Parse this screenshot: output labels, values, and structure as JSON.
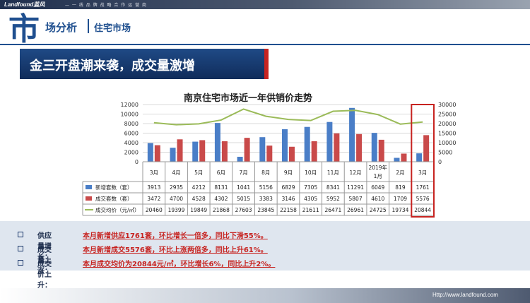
{
  "header": {
    "logo": "Landfound蓝风",
    "slogan": "— 一 线 品 牌 战 略 合 作 运 营 商",
    "big_char": "市",
    "section_title": "场分析",
    "section_sub": "住宅市场"
  },
  "banner": {
    "title": "金三开盘潮来袭，成交量激增"
  },
  "chart_data": {
    "type": "bar",
    "title": "南京住宅市场近一年供销价走势",
    "categories": [
      "3月",
      "4月",
      "5月",
      "6月",
      "7月",
      "8月",
      "9月",
      "10月",
      "11月",
      "12月",
      "2019年1月",
      "2月",
      "3月"
    ],
    "series": [
      {
        "name": "新增套数（套）",
        "type": "bar",
        "axis": "left",
        "color": "#4a7ec7",
        "values": [
          3913,
          2935,
          4212,
          8131,
          1041,
          5156,
          6829,
          7305,
          8341,
          11291,
          6049,
          819,
          1761
        ]
      },
      {
        "name": "成交套数（套）",
        "type": "bar",
        "axis": "left",
        "color": "#c94a4a",
        "values": [
          3472,
          4700,
          4528,
          4302,
          5015,
          3383,
          3146,
          4305,
          5952,
          5807,
          4610,
          1709,
          5576
        ]
      },
      {
        "name": "成交均价（元/㎡）",
        "type": "line",
        "axis": "right",
        "color": "#9bbb59",
        "values": [
          20460,
          19399,
          19849,
          21868,
          27603,
          23845,
          22158,
          21611,
          26471,
          26961,
          24725,
          19734,
          20844
        ]
      }
    ],
    "y_left": {
      "min": 0,
      "max": 12000,
      "ticks": [
        "0",
        "2000",
        "4000",
        "6000",
        "8000",
        "10000",
        "12000"
      ]
    },
    "y_right": {
      "min": 0,
      "max": 30000,
      "ticks": [
        "0",
        "5000",
        "10000",
        "15000",
        "20000",
        "25000",
        "30000"
      ]
    },
    "grid": true,
    "legend": "table-left",
    "highlight_category": "3月 (2019)",
    "highlight_color": "#c72320"
  },
  "bullets": [
    {
      "label": "供应量增长：",
      "text": "本月新增供应1761套，环比增长一倍多，同比下滑55%。"
    },
    {
      "label": "成交量上涨：",
      "text": "本月新增成交5576套，环比上涨两倍多，同比上升61%。"
    },
    {
      "label": "成交价上升：",
      "text": "本月成交均价为20844元/㎡，环比增长6%，同比上升2%。"
    }
  ],
  "footer": {
    "url": "Http://www.landfound.com"
  }
}
